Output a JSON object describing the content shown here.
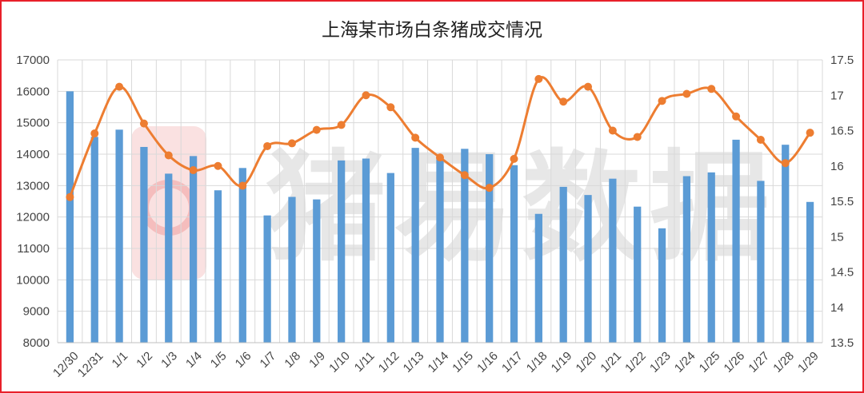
{
  "chart_data": {
    "type": "bar+line",
    "title": "上海某市场白条猪成交情况",
    "watermark": "猪易数据",
    "categories": [
      "12/30",
      "12/31",
      "1/1",
      "1/2",
      "1/3",
      "1/4",
      "1/5",
      "1/6",
      "1/7",
      "1/8",
      "1/9",
      "1/10",
      "1/11",
      "1/12",
      "1/13",
      "1/14",
      "1/15",
      "1/16",
      "1/17",
      "1/18",
      "1/19",
      "1/20",
      "1/21",
      "1/22",
      "1/23",
      "1/24",
      "1/25",
      "1/26",
      "1/27",
      "1/28",
      "1/29"
    ],
    "series": [
      {
        "type": "bar",
        "axis": "left",
        "color": "#5b9bd5",
        "values": [
          16000,
          14550,
          14780,
          14230,
          13380,
          13940,
          12850,
          13560,
          12050,
          12640,
          12560,
          13800,
          13860,
          13400,
          14200,
          13900,
          14170,
          14000,
          13650,
          12100,
          12960,
          12700,
          13220,
          12330,
          11640,
          13300,
          13420,
          14460,
          13150,
          14300,
          12480
        ]
      },
      {
        "type": "line",
        "axis": "right",
        "color": "#ed7d31",
        "values": [
          15.56,
          16.46,
          17.12,
          16.6,
          16.15,
          15.94,
          16.0,
          15.72,
          16.28,
          16.32,
          16.51,
          16.58,
          17.0,
          16.83,
          16.4,
          16.12,
          15.87,
          15.69,
          16.1,
          17.23,
          16.91,
          17.12,
          16.5,
          16.41,
          16.92,
          17.02,
          17.09,
          16.7,
          16.37,
          16.04,
          16.47
        ]
      }
    ],
    "y_left": {
      "lim": [
        8000,
        17000
      ],
      "ticks": [
        "8000",
        "9000",
        "10000",
        "11000",
        "12000",
        "13000",
        "14000",
        "15000",
        "16000",
        "17000"
      ]
    },
    "y_right": {
      "lim": [
        13.5,
        17.5
      ],
      "ticks": [
        "13.5",
        "14",
        "14.5",
        "15",
        "15.5",
        "16",
        "16.5",
        "17",
        "17.5"
      ]
    },
    "grid": true,
    "legend": "none"
  }
}
